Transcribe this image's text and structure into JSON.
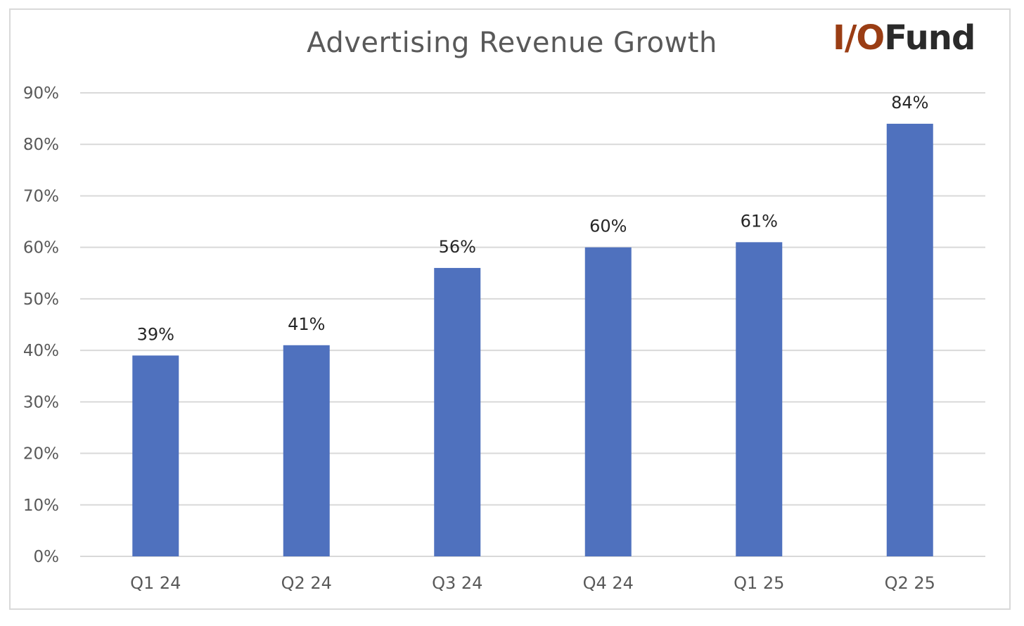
{
  "logo": {
    "part1": "I/O",
    "part2": "Fund",
    "color1": "#9a3d14",
    "color2": "#2a2a2a"
  },
  "chart_data": {
    "type": "bar",
    "title": "Advertising Revenue Growth",
    "xlabel": "",
    "ylabel": "",
    "categories": [
      "Q1 24",
      "Q2 24",
      "Q3 24",
      "Q4 24",
      "Q1 25",
      "Q2 25"
    ],
    "values": [
      39,
      41,
      56,
      60,
      61,
      84
    ],
    "value_labels": [
      "39%",
      "41%",
      "56%",
      "60%",
      "61%",
      "84%"
    ],
    "ylim": [
      0,
      90
    ],
    "yticks": [
      0,
      10,
      20,
      30,
      40,
      50,
      60,
      70,
      80,
      90
    ],
    "ytick_labels": [
      "0%",
      "10%",
      "20%",
      "30%",
      "40%",
      "50%",
      "60%",
      "70%",
      "80%",
      "90%"
    ],
    "grid": true,
    "legend": "none",
    "bar_color": "#4f71be",
    "grid_color": "#d9d9d9"
  }
}
